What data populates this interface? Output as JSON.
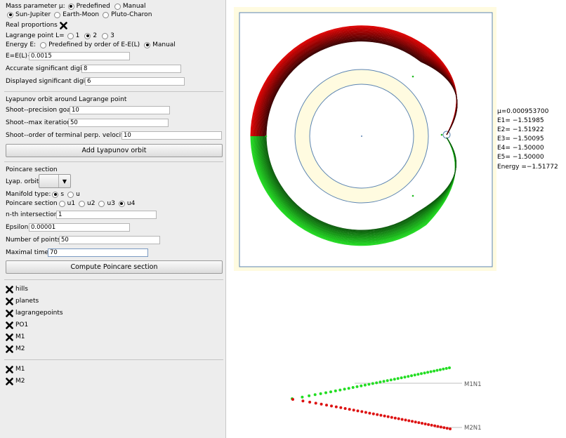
{
  "panel": {
    "mass": {
      "label": "Mass parameter μ:",
      "opt_predefined": "Predefined",
      "opt_manual": "Manual",
      "opt_sj": "Sun-Jupiter",
      "opt_em": "Earth-Moon",
      "opt_pc": "Pluto-Charon"
    },
    "real_proportions": "Real proportions",
    "lagrange": {
      "label": "Lagrange point L=",
      "o1": "1",
      "o2": "2",
      "o3": "3"
    },
    "energy": {
      "label": "Energy E:",
      "opt_pre": "Predefined by order of E-E(L)",
      "opt_manual": "Manual"
    },
    "e_field": {
      "label": "E=E(L)+",
      "value": "0.0015"
    },
    "acc_digits": {
      "label": "Accurate significant digits:",
      "value": "8"
    },
    "disp_digits": {
      "label": "Displayed significant digits:",
      "value": "6"
    },
    "lyap_title": "Lyapunov  orbit around Lagrange point",
    "shoot_goal": {
      "label": "Shoot--precision goal",
      "value": "10"
    },
    "shoot_max": {
      "label": "Shoot--max iterations",
      "value": "50"
    },
    "shoot_order": {
      "label": "Shoot--order of terminal perp. velocity:",
      "value": "10"
    },
    "add_button": "Add Lyapunov orbit",
    "poinc_title": "Poincare section",
    "lyap_orbit_label": "Lyap.  orbit:",
    "manifold": {
      "label": "Manifold type:",
      "s": "s",
      "u": "u"
    },
    "psection": {
      "label": "Poincare section",
      "u1": "u1",
      "u2": "u2",
      "u3": "u3",
      "u4": "u4"
    },
    "nth": {
      "label": "n-th intersection:",
      "value": "1"
    },
    "eps": {
      "label": "Epsilon:",
      "value": "0.00001"
    },
    "npoints": {
      "label": "Number of points:",
      "value": "50"
    },
    "maxtime": {
      "label": "Maximal time:",
      "value": "70"
    },
    "compute_button": "Compute Poincare section",
    "layers1": [
      "hills",
      "planets",
      "lagrangepoints",
      "PO1",
      "M1",
      "M2"
    ],
    "layers2": [
      "M1",
      "M2"
    ]
  },
  "info": {
    "mu": "μ=0.000953700",
    "e1": "E1= −1.51985",
    "e2": "E2= −1.51922",
    "e3": "E3= −1.50095",
    "e4": "E4= −1.50000",
    "e5": "E5= −1.50000",
    "energy": "Energy =−1.51772"
  },
  "section_plot": {
    "label_top": "M1N1",
    "label_bottom": "M2N1"
  },
  "colors": {
    "red": "#e00000",
    "darkred": "#3a0000",
    "green": "#22dd22",
    "darkgreen": "#0c5a0c",
    "hill_fill": "#fffbe0",
    "hill_stroke": "#5b84b1"
  }
}
